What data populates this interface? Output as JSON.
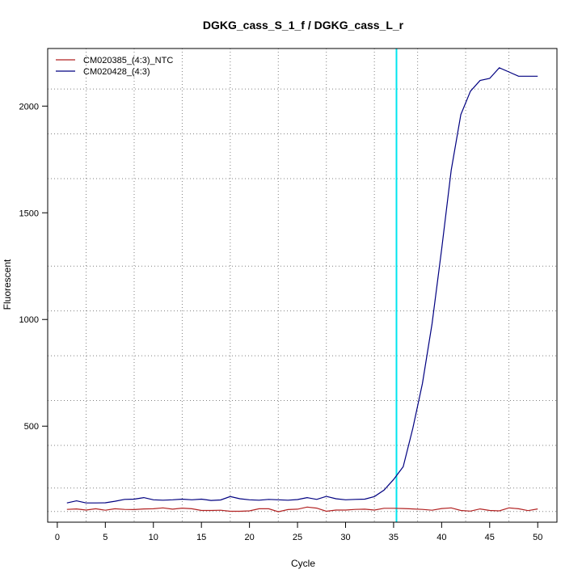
{
  "chart_data": {
    "type": "line",
    "title": "DGKG_cass_S_1_f / DGKG_cass_L_r",
    "xlabel": "Cycle",
    "ylabel": "Fluorescent",
    "xlim": [
      -1,
      52
    ],
    "ylim": [
      50,
      2270
    ],
    "xticks": [
      0,
      5,
      10,
      15,
      20,
      25,
      30,
      35,
      40,
      45,
      50
    ],
    "yticks": [
      500,
      1000,
      1500,
      2000
    ],
    "grid_x": [
      3,
      8,
      13,
      18,
      23,
      28,
      33,
      37.5,
      42.5,
      47
    ],
    "grid_y": [
      100,
      210,
      410,
      620,
      830,
      1040,
      1250,
      1660,
      1870,
      2080
    ],
    "threshold_x": 35.3,
    "threshold_color": "#00e5ee",
    "legend_position": "top-left",
    "x": [
      1,
      2,
      3,
      4,
      5,
      6,
      7,
      8,
      9,
      10,
      11,
      12,
      13,
      14,
      15,
      16,
      17,
      18,
      19,
      20,
      21,
      22,
      23,
      24,
      25,
      26,
      27,
      28,
      29,
      30,
      31,
      32,
      33,
      34,
      35,
      36,
      37,
      38,
      39,
      40,
      41,
      42,
      43,
      44,
      45,
      46,
      47,
      48,
      49,
      50
    ],
    "series": [
      {
        "name": "CM020385_(4:3)_NTC",
        "color": "#b22222",
        "values": [
          110,
          112,
          107,
          113,
          106,
          113,
          110,
          109,
          112,
          113,
          117,
          111,
          116,
          113,
          105,
          105,
          106,
          101,
          101,
          103,
          113,
          113,
          99,
          109,
          111,
          121,
          116,
          101,
          107,
          107,
          110,
          111,
          107,
          115,
          115,
          114,
          112,
          110,
          106,
          114,
          117,
          105,
          102,
          112,
          105,
          103,
          117,
          113,
          104,
          112
        ]
      },
      {
        "name": "CM020428_(4:3)",
        "color": "#000080",
        "values": [
          140,
          150,
          140,
          140,
          141,
          148,
          157,
          158,
          165,
          155,
          153,
          155,
          158,
          155,
          158,
          152,
          154,
          170,
          160,
          155,
          153,
          157,
          155,
          153,
          156,
          165,
          157,
          171,
          160,
          155,
          157,
          158,
          170,
          200,
          250,
          310,
          490,
          700,
          980,
          1330,
          1700,
          1960,
          2070,
          2120,
          2130,
          2180,
          2160,
          2140,
          2140,
          2140
        ]
      }
    ]
  }
}
